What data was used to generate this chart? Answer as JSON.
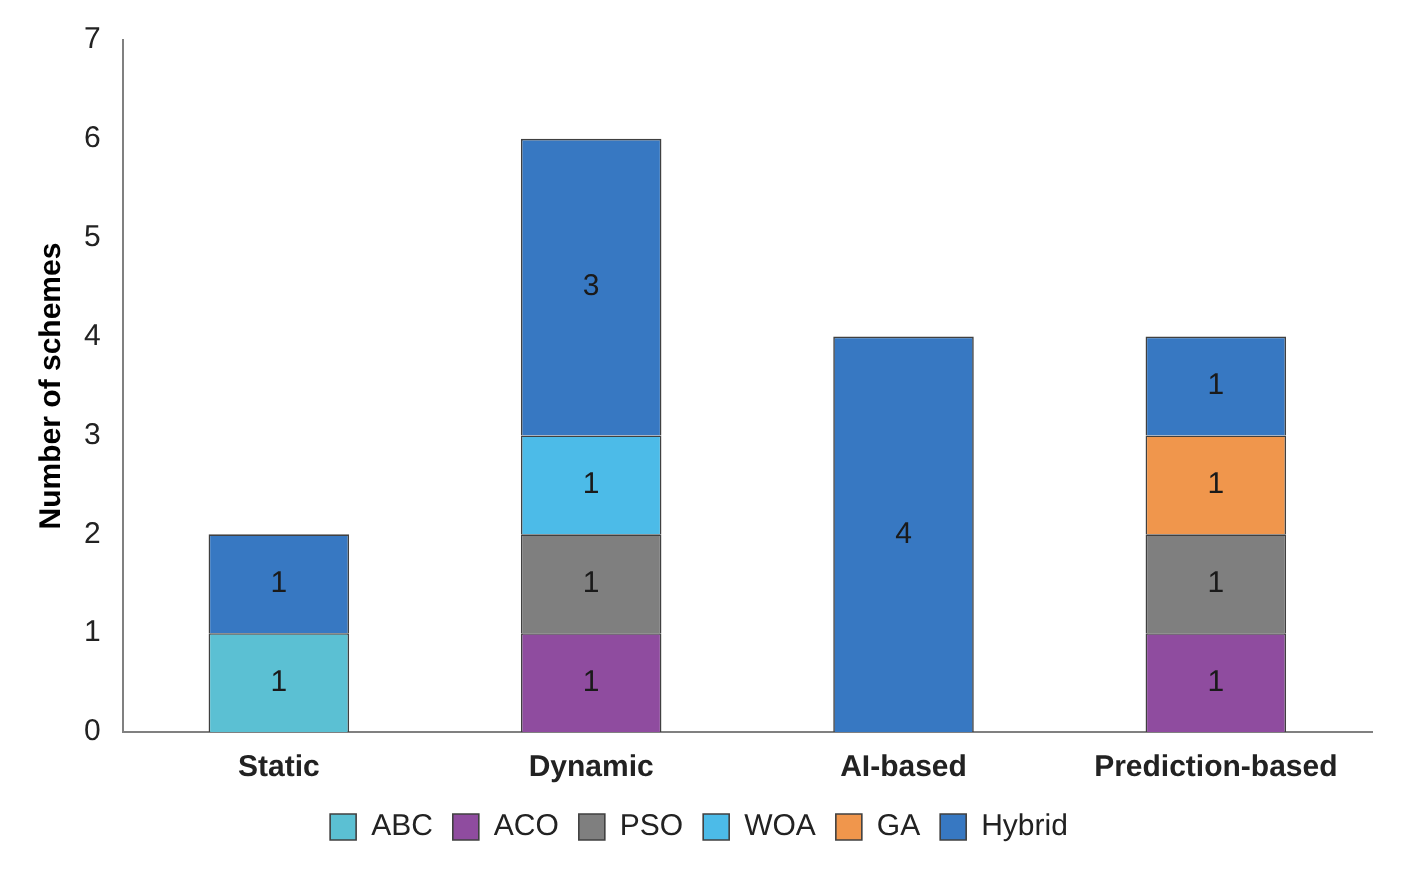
{
  "chart_data": {
    "type": "bar",
    "stacked": true,
    "ylabel": "Number of schemes",
    "categories": [
      "Static",
      "Dynamic",
      "AI-based",
      "Prediction-based"
    ],
    "series": [
      {
        "name": "ABC",
        "color": "#5bc0d3",
        "values": [
          1,
          null,
          null,
          null
        ]
      },
      {
        "name": "ACO",
        "color": "#8f4c9f",
        "values": [
          null,
          1,
          null,
          1
        ]
      },
      {
        "name": "PSO",
        "color": "#7f7f7f",
        "values": [
          null,
          1,
          null,
          1
        ]
      },
      {
        "name": "WOA",
        "color": "#4cbbe8",
        "values": [
          null,
          1,
          null,
          null
        ]
      },
      {
        "name": "GA",
        "color": "#f0964c",
        "values": [
          null,
          null,
          null,
          1
        ]
      },
      {
        "name": "Hybrid",
        "color": "#3778c2",
        "values": [
          1,
          3,
          4,
          1
        ]
      }
    ],
    "ylim": [
      0,
      7
    ],
    "yticks": [
      0,
      1,
      2,
      3,
      4,
      5,
      6,
      7
    ],
    "grid": false,
    "legend": "bottom",
    "data_labels": true
  }
}
